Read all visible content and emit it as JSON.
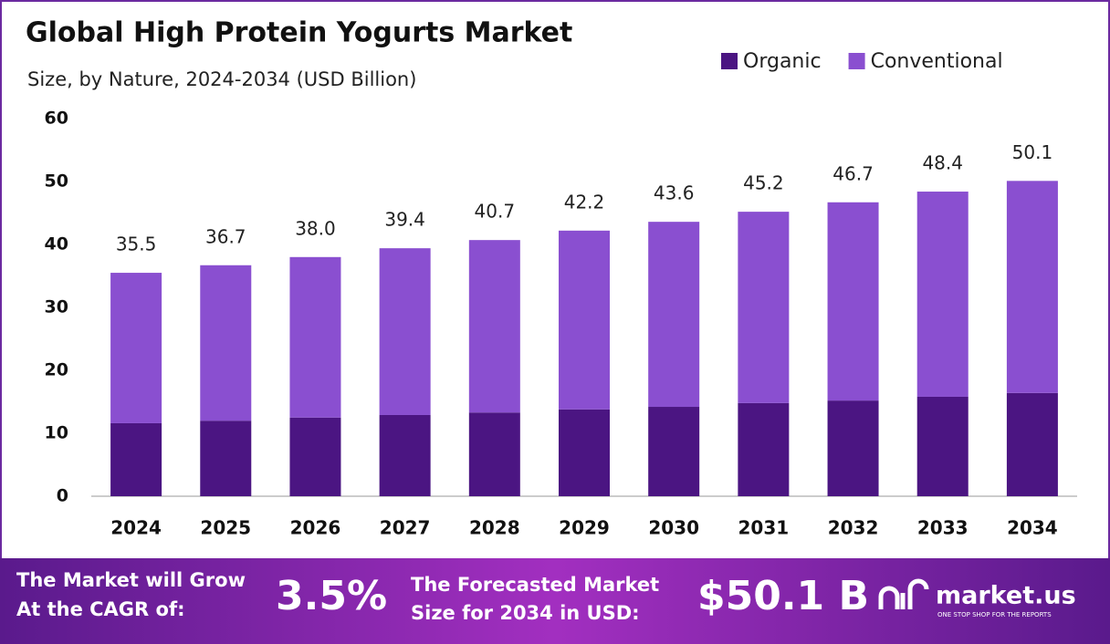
{
  "chart_data": {
    "type": "stacked_bar",
    "title": "Global High Protein Yogurts Market",
    "subtitle": "Size, by Nature, 2024-2034 (USD Billion)",
    "categories": [
      "2024",
      "2025",
      "2026",
      "2027",
      "2028",
      "2029",
      "2030",
      "2031",
      "2032",
      "2033",
      "2034"
    ],
    "series": [
      {
        "name": "Organic",
        "color": "#4b1582",
        "values": [
          11.6,
          12.0,
          12.5,
          12.9,
          13.3,
          13.8,
          14.2,
          14.8,
          15.2,
          15.8,
          16.4
        ]
      },
      {
        "name": "Conventional",
        "color": "#8a4fd0",
        "values": [
          23.9,
          24.7,
          25.5,
          26.5,
          27.4,
          28.4,
          29.4,
          30.4,
          31.5,
          32.6,
          33.7
        ]
      }
    ],
    "totals": [
      35.5,
      36.7,
      38.0,
      39.4,
      40.7,
      42.2,
      43.6,
      45.2,
      46.7,
      48.4,
      50.1
    ],
    "total_labels": [
      "35.5",
      "36.7",
      "38.0",
      "39.4",
      "40.7",
      "42.2",
      "43.6",
      "45.2",
      "46.7",
      "48.4",
      "50.1"
    ],
    "ylim": [
      0,
      60
    ],
    "yticks": [
      0,
      10,
      20,
      30,
      40,
      50,
      60
    ],
    "grid": false,
    "legend": "top-right"
  },
  "footer": {
    "cagr_text": [
      "The Market will Grow",
      "At the CAGR of:"
    ],
    "cagr": "3.5%",
    "forecast_text": [
      "The Forecasted Market",
      "Size for 2034 in USD:"
    ],
    "forecast": "$50.1 B",
    "brand": "market.us",
    "tagline": "ONE STOP SHOP FOR THE REPORTS"
  }
}
